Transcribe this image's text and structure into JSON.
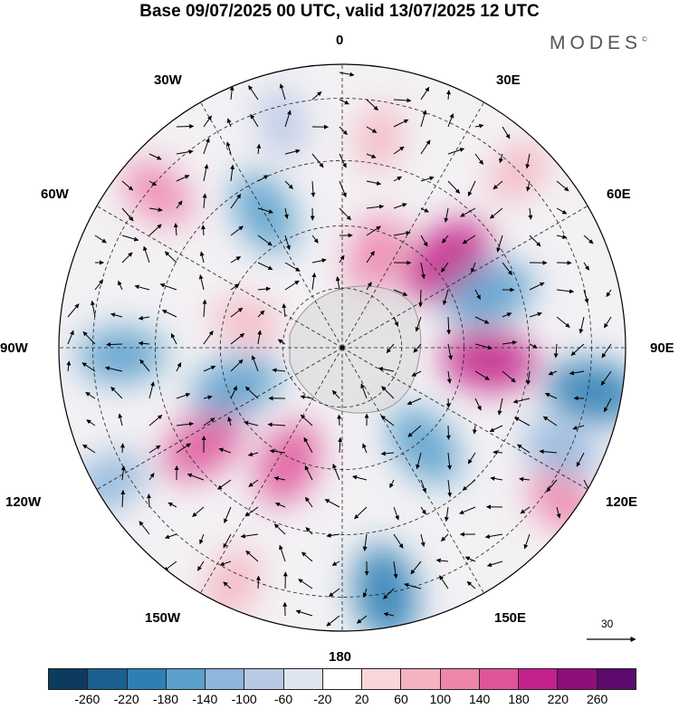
{
  "title": "Base 09/07/2025 00 UTC, valid 13/07/2025 12 UTC",
  "brand": "MODES",
  "brand_mark": "©",
  "longitude_labels": {
    "top": "0",
    "lon30e": "30E",
    "lon60e": "60E",
    "lon90e": "90E",
    "lon120e": "120E",
    "lon150e": "150E",
    "bottom": "180",
    "lon150w": "150W",
    "lon120w": "120W",
    "lon90w": "90W",
    "lon60w": "60W",
    "lon30w": "30W"
  },
  "vector_scale": "30",
  "colorbar": {
    "ticks": [
      "-260",
      "-220",
      "-180",
      "-140",
      "-100",
      "-60",
      "-20",
      "20",
      "60",
      "100",
      "140",
      "180",
      "220",
      "260"
    ],
    "colors": [
      "#0d3b5e",
      "#1a5f8f",
      "#2f7fb5",
      "#5aa0cc",
      "#8fb6dc",
      "#b9c8e5",
      "#dfe4f1",
      "#ffffff",
      "#f9d6d9",
      "#f5b3c0",
      "#ee86ac",
      "#e0559a",
      "#c4218a",
      "#8f0f79",
      "#5c0a6e"
    ]
  },
  "anomalies": [
    {
      "lon": 50,
      "r": 0.48,
      "value": 210
    },
    {
      "lon": 20,
      "r": 0.35,
      "value": 130
    },
    {
      "lon": 10,
      "r": 0.75,
      "value": 60
    },
    {
      "lon": 70,
      "r": 0.55,
      "value": -180
    },
    {
      "lon": 95,
      "r": 0.52,
      "value": 190
    },
    {
      "lon": 100,
      "r": 0.9,
      "value": -200
    },
    {
      "lon": 115,
      "r": 0.85,
      "value": -120
    },
    {
      "lon": 140,
      "r": 0.45,
      "value": -160
    },
    {
      "lon": 125,
      "r": 0.95,
      "value": 110
    },
    {
      "lon": 170,
      "r": 0.88,
      "value": -200
    },
    {
      "lon": 205,
      "r": 0.45,
      "value": 150
    },
    {
      "lon": 235,
      "r": 0.6,
      "value": 160
    },
    {
      "lon": 250,
      "r": 0.4,
      "value": -170
    },
    {
      "lon": 268,
      "r": 0.78,
      "value": -150
    },
    {
      "lon": 240,
      "r": 0.95,
      "value": -120
    },
    {
      "lon": 205,
      "r": 0.92,
      "value": 90
    },
    {
      "lon": 285,
      "r": 0.35,
      "value": 60
    },
    {
      "lon": 310,
      "r": 0.85,
      "value": 110
    },
    {
      "lon": 330,
      "r": 0.55,
      "value": -150
    },
    {
      "lon": 345,
      "r": 0.82,
      "value": -80
    },
    {
      "lon": 45,
      "r": 0.88,
      "value": 70
    }
  ]
}
